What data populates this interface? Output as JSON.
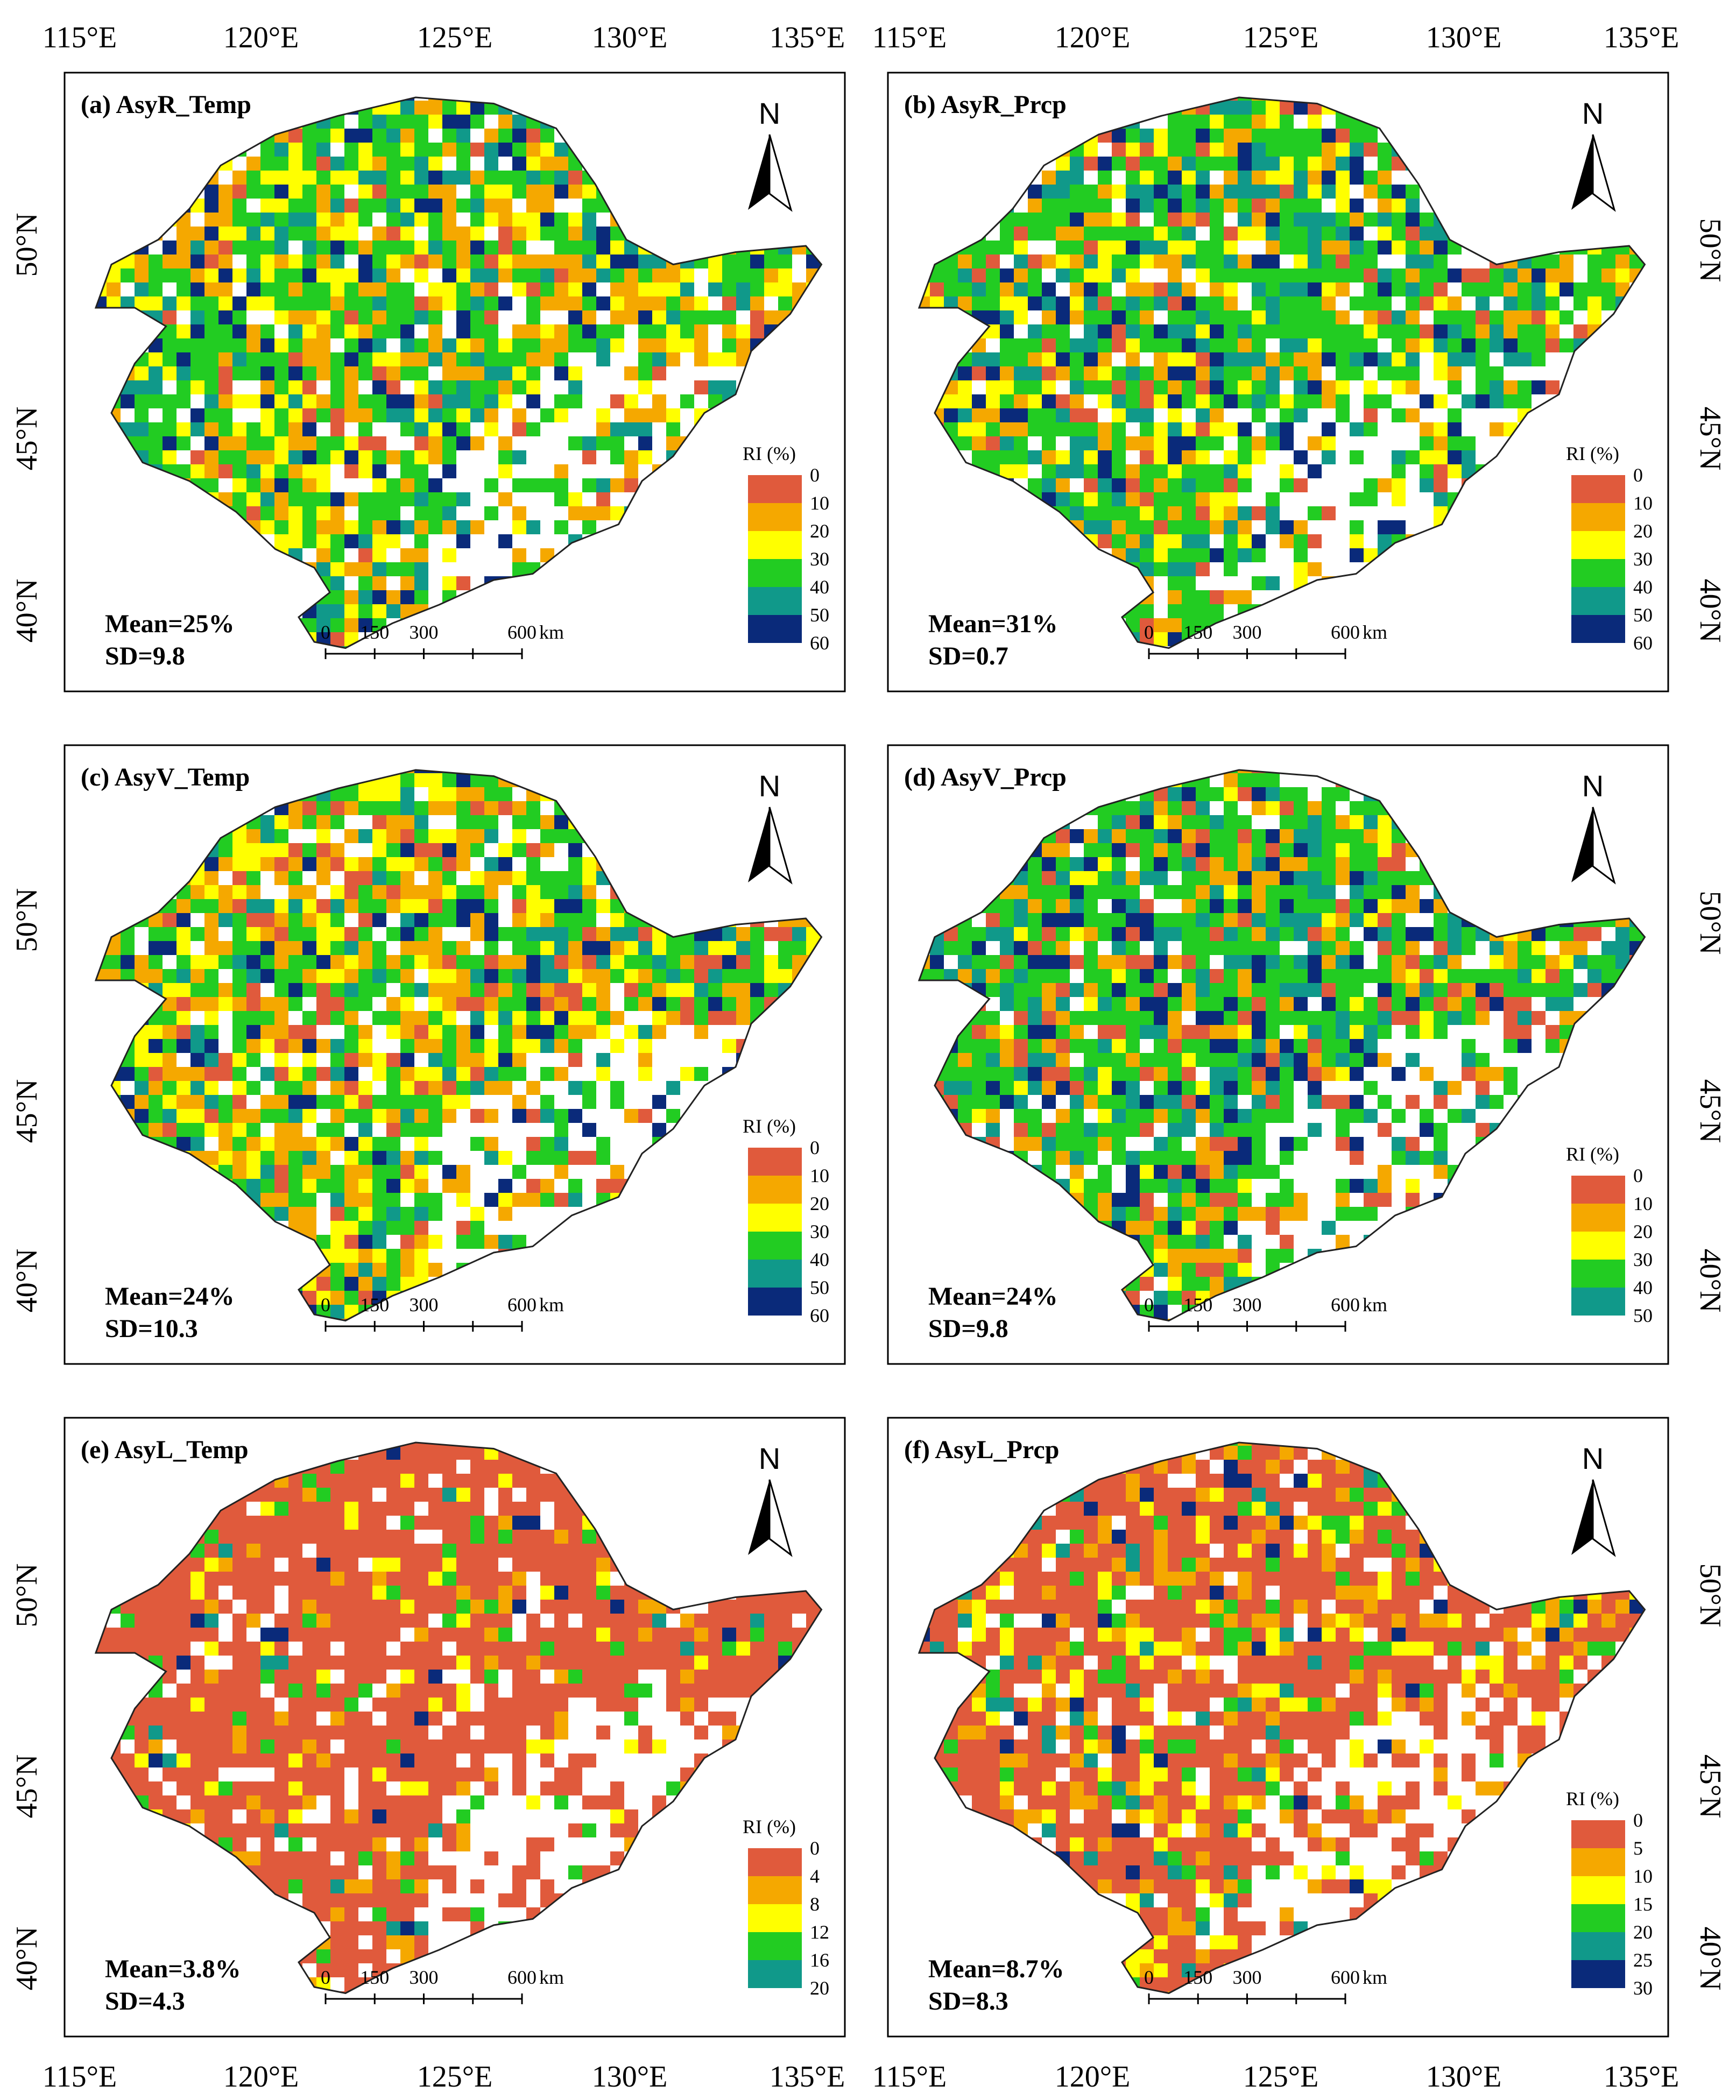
{
  "figure": {
    "axis_labels": {
      "lon_top": [
        "115°E",
        "120°E",
        "125°E",
        "130°E",
        "135°E"
      ],
      "lon_bottom": [
        "115°E",
        "120°E",
        "125°E",
        "130°E",
        "135°E"
      ],
      "lat_left": [
        "50°N",
        "45°N",
        "40°N"
      ],
      "lat_right": [
        "50°N",
        "45°N",
        "40°N"
      ]
    },
    "north_label": "N",
    "scale_bar": {
      "labels": [
        "0",
        "150",
        "300",
        "600"
      ],
      "unit": "km"
    },
    "legend_title": "RI (%)"
  },
  "colors": {
    "c0": "#e05a3c",
    "c1": "#f5a800",
    "c2": "#ffff00",
    "c3": "#22cc22",
    "c4": "#10998a",
    "c5": "#0a2a7a"
  },
  "panels": [
    {
      "id": "a",
      "title": "(a)  AsyR_Temp",
      "mean": "Mean=25%",
      "sd": "SD=9.8",
      "legend": [
        "0",
        "10",
        "20",
        "30",
        "40",
        "50",
        "60"
      ],
      "composition": [
        0.05,
        0.22,
        0.18,
        0.35,
        0.12,
        0.08
      ]
    },
    {
      "id": "b",
      "title": "(b)  AsyR_Prcp",
      "mean": "Mean=31%",
      "sd": "SD=0.7",
      "legend": [
        "0",
        "10",
        "20",
        "30",
        "40",
        "50",
        "60"
      ],
      "composition": [
        0.06,
        0.14,
        0.14,
        0.4,
        0.16,
        0.1
      ]
    },
    {
      "id": "c",
      "title": "(c)  AsyV_Temp",
      "mean": "Mean=24%",
      "sd": "SD=10.3",
      "legend": [
        "0",
        "10",
        "20",
        "30",
        "40",
        "50",
        "60"
      ],
      "composition": [
        0.1,
        0.22,
        0.18,
        0.32,
        0.11,
        0.07
      ]
    },
    {
      "id": "d",
      "title": "(d)  AsyV_Prcp",
      "mean": "Mean=24%",
      "sd": "SD=9.8",
      "legend": [
        "0",
        "10",
        "20",
        "30",
        "40",
        "50"
      ],
      "composition": [
        0.12,
        0.12,
        0.06,
        0.4,
        0.18,
        0.12
      ]
    },
    {
      "id": "e",
      "title": "(e)  AsyL_Temp",
      "mean": "Mean=3.8%",
      "sd": "SD=4.3",
      "legend": [
        "0",
        "4",
        "8",
        "12",
        "16",
        "20"
      ],
      "composition": [
        0.78,
        0.08,
        0.05,
        0.05,
        0.02,
        0.02
      ]
    },
    {
      "id": "f",
      "title": "(f)  AsyL_Prcp",
      "mean": "Mean=8.7%",
      "sd": "SD=8.3",
      "legend": [
        "0",
        "5",
        "10",
        "15",
        "20",
        "25",
        "30"
      ],
      "composition": [
        0.6,
        0.14,
        0.12,
        0.07,
        0.03,
        0.04
      ]
    }
  ]
}
